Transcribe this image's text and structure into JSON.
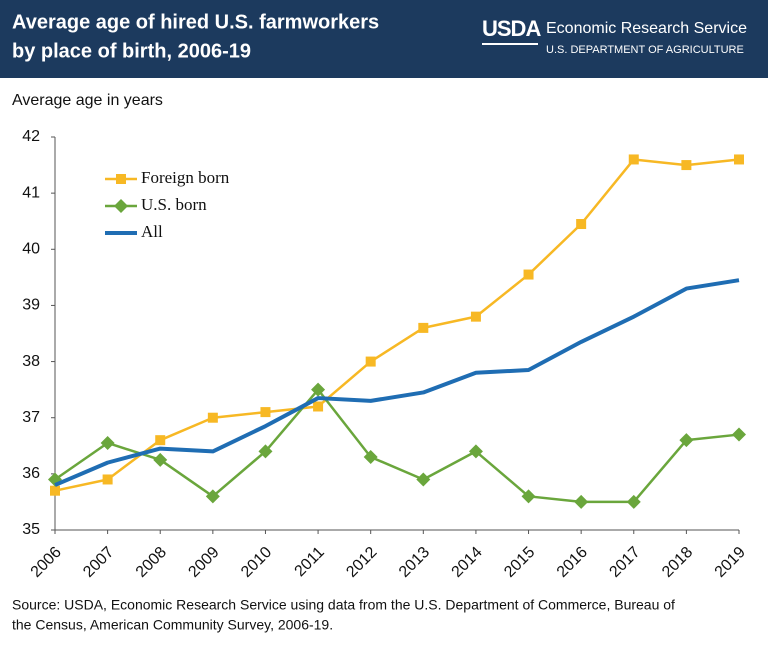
{
  "chart_data": {
    "type": "line",
    "title": [
      "Average age of hired U.S. farmworkers",
      "by place of birth, 2006-19"
    ],
    "brand": {
      "logo": "USDA",
      "agency": "Economic Research Service",
      "department": "U.S. DEPARTMENT OF AGRICULTURE"
    },
    "y_label": "Average age in years",
    "source": [
      "Source: USDA, Economic Research Service using data from the U.S. Department of Commerce, Bureau of",
      "the Census, American Community Survey, 2006-19."
    ],
    "categories": [
      "2006",
      "2007",
      "2008",
      "2009",
      "2010",
      "2011",
      "2012",
      "2013",
      "2014",
      "2015",
      "2016",
      "2017",
      "2018",
      "2019"
    ],
    "series": [
      {
        "name": "Foreign born",
        "color": "#f7b824",
        "marker": "square",
        "values": [
          35.7,
          35.9,
          36.6,
          37.0,
          37.1,
          37.2,
          38.0,
          38.6,
          38.8,
          39.55,
          40.45,
          41.6,
          41.5,
          41.6
        ]
      },
      {
        "name": "U.S. born",
        "color": "#6aa63c",
        "marker": "diamond",
        "values": [
          35.9,
          36.55,
          36.25,
          35.6,
          36.4,
          37.5,
          36.3,
          35.9,
          36.4,
          35.6,
          35.5,
          35.5,
          36.6,
          36.7
        ]
      },
      {
        "name": "All",
        "color": "#1f6db3",
        "marker": "none",
        "values": [
          35.8,
          36.2,
          36.45,
          36.4,
          36.85,
          37.35,
          37.3,
          37.45,
          37.8,
          37.85,
          38.35,
          38.8,
          39.3,
          39.45
        ]
      }
    ],
    "ylim": [
      35,
      42
    ],
    "yticks": [
      35,
      36,
      37,
      38,
      39,
      40,
      41,
      42
    ],
    "grid": false
  }
}
